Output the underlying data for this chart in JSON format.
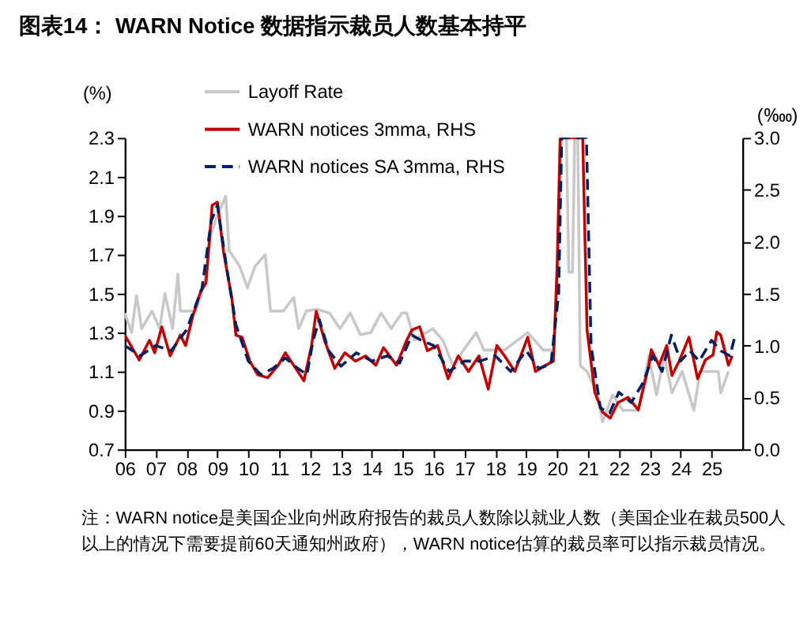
{
  "chart_data": {
    "type": "line",
    "title": "图表14：  WARN Notice 数据指示裁员人数基本持平",
    "ylabel": "(%)",
    "y2label": "(‱)",
    "annotations": [
      "注：WARN notice是美国企业向州政府报告的裁员人数除以就业人数（美国企业在裁员500人以上的情况下需要提前60天通知州政府），WARN notice估算的裁员率可以指示裁员情况。"
    ],
    "xlim": [
      2006,
      2026
    ],
    "xticks": [
      {
        "value": 2006,
        "label": "06"
      },
      {
        "value": 2007,
        "label": "07"
      },
      {
        "value": 2008,
        "label": "08"
      },
      {
        "value": 2009,
        "label": "09"
      },
      {
        "value": 2010,
        "label": "10"
      },
      {
        "value": 2011,
        "label": "11"
      },
      {
        "value": 2012,
        "label": "12"
      },
      {
        "value": 2013,
        "label": "13"
      },
      {
        "value": 2014,
        "label": "14"
      },
      {
        "value": 2015,
        "label": "15"
      },
      {
        "value": 2016,
        "label": "16"
      },
      {
        "value": 2017,
        "label": "17"
      },
      {
        "value": 2018,
        "label": "18"
      },
      {
        "value": 2019,
        "label": "19"
      },
      {
        "value": 2020,
        "label": "20"
      },
      {
        "value": 2021,
        "label": "21"
      },
      {
        "value": 2022,
        "label": "22"
      },
      {
        "value": 2023,
        "label": "23"
      },
      {
        "value": 2024,
        "label": "24"
      },
      {
        "value": 2025,
        "label": "25"
      }
    ],
    "ylim": [
      0.7,
      2.3
    ],
    "yticks": [
      {
        "value": 0.7,
        "label": "0.7"
      },
      {
        "value": 0.9,
        "label": "0.9"
      },
      {
        "value": 1.1,
        "label": "1.1"
      },
      {
        "value": 1.3,
        "label": "1.3"
      },
      {
        "value": 1.5,
        "label": "1.5"
      },
      {
        "value": 1.7,
        "label": "1.7"
      },
      {
        "value": 1.9,
        "label": "1.9"
      },
      {
        "value": 2.1,
        "label": "2.1"
      },
      {
        "value": 2.3,
        "label": "2.3"
      }
    ],
    "y2lim": [
      0,
      3
    ],
    "y2ticks": [
      {
        "value": 0,
        "label": "0.0"
      },
      {
        "value": 0.5,
        "label": "0.5"
      },
      {
        "value": 1,
        "label": "1.0"
      },
      {
        "value": 1.5,
        "label": "1.5"
      },
      {
        "value": 2,
        "label": "2.0"
      },
      {
        "value": 2.5,
        "label": "2.5"
      },
      {
        "value": 3,
        "label": "3.0"
      }
    ],
    "grid": false,
    "legend": "top left",
    "series": [
      {
        "name": "Layoff Rate",
        "color": "#c8c8c8",
        "line_style": "solid",
        "x": [
          2006.0,
          2006.22,
          2006.38,
          2006.55,
          2006.88,
          2007.13,
          2007.3,
          2007.55,
          2007.72,
          2007.8,
          2008.3,
          2008.55,
          2008.8,
          2009.0,
          2009.27,
          2009.38,
          2009.72,
          2009.97,
          2010.22,
          2010.55,
          2010.72,
          2011.13,
          2011.47,
          2011.63,
          2011.88,
          2012.22,
          2012.63,
          2012.97,
          2013.3,
          2013.63,
          2013.97,
          2014.3,
          2014.63,
          2014.97,
          2015.13,
          2015.38,
          2015.97,
          2016.3,
          2016.63,
          2016.97,
          2017.38,
          2017.63,
          2018.3,
          2019.05,
          2019.55,
          2019.88,
          2020.05,
          2020.13,
          2020.3,
          2020.38,
          2020.5,
          2020.57,
          2020.67,
          2020.75,
          2020.97,
          2021.3,
          2021.47,
          2021.8,
          2022.13,
          2022.63,
          2022.97,
          2023.22,
          2023.47,
          2023.72,
          2024.05,
          2024.43,
          2024.63,
          2025.22,
          2025.3,
          2025.55
        ],
        "values": [
          1.4,
          1.3,
          1.49,
          1.32,
          1.41,
          1.32,
          1.5,
          1.32,
          1.6,
          1.41,
          1.41,
          1.53,
          1.81,
          1.9,
          2.0,
          1.72,
          1.64,
          1.53,
          1.64,
          1.7,
          1.41,
          1.41,
          1.48,
          1.32,
          1.41,
          1.42,
          1.4,
          1.32,
          1.4,
          1.29,
          1.3,
          1.4,
          1.32,
          1.4,
          1.4,
          1.26,
          1.32,
          1.26,
          1.13,
          1.21,
          1.3,
          1.21,
          1.21,
          1.3,
          1.21,
          1.21,
          1.64,
          2.3,
          2.3,
          1.61,
          1.61,
          2.3,
          2.3,
          1.13,
          1.1,
          0.99,
          0.84,
          0.98,
          0.9,
          0.9,
          1.18,
          0.98,
          1.18,
          0.99,
          1.1,
          0.9,
          1.1,
          1.1,
          0.99,
          1.1
        ]
      },
      {
        "name": "WARN notices 3mma, RHS",
        "color": "#c00000",
        "line_style": "solid",
        "axis": "y2",
        "x": [
          2006.0,
          2006.47,
          2006.8,
          2006.97,
          2007.2,
          2007.47,
          2007.8,
          2007.97,
          2008.2,
          2008.47,
          2008.63,
          2008.83,
          2009.0,
          2009.2,
          2009.47,
          2009.6,
          2009.8,
          2010.05,
          2010.3,
          2010.63,
          2010.97,
          2011.2,
          2011.47,
          2011.8,
          2012.05,
          2012.2,
          2012.47,
          2012.8,
          2013.13,
          2013.47,
          2013.8,
          2014.13,
          2014.38,
          2014.8,
          2015.13,
          2015.3,
          2015.55,
          2015.8,
          2016.13,
          2016.47,
          2016.8,
          2017.13,
          2017.47,
          2017.77,
          2018.05,
          2018.3,
          2018.63,
          2019.05,
          2019.3,
          2019.63,
          2019.88,
          2020.0,
          2020.1,
          2020.83,
          2020.97,
          2021.22,
          2021.47,
          2021.72,
          2021.97,
          2022.3,
          2022.63,
          2022.97,
          2023.05,
          2023.3,
          2023.55,
          2023.72,
          2023.97,
          2024.27,
          2024.55,
          2024.8,
          2025.05,
          2025.17,
          2025.3,
          2025.55,
          2025.67
        ],
        "values": [
          1.1,
          0.86,
          1.05,
          0.93,
          1.18,
          0.9,
          1.1,
          1.0,
          1.28,
          1.53,
          1.6,
          2.35,
          2.38,
          1.9,
          1.45,
          1.1,
          1.08,
          0.85,
          0.72,
          0.69,
          0.81,
          0.93,
          0.81,
          0.66,
          1.0,
          1.33,
          1.05,
          0.78,
          0.93,
          0.85,
          0.9,
          0.81,
          0.98,
          0.81,
          1.05,
          1.15,
          1.18,
          0.95,
          1.0,
          0.68,
          0.9,
          0.75,
          0.9,
          0.58,
          1.0,
          0.9,
          0.75,
          1.08,
          0.75,
          0.81,
          0.85,
          1.75,
          3.0,
          3.0,
          1.15,
          0.55,
          0.36,
          0.3,
          0.45,
          0.5,
          0.38,
          0.81,
          0.96,
          0.81,
          1.0,
          0.71,
          0.86,
          1.08,
          0.68,
          0.86,
          0.91,
          1.13,
          1.1,
          0.81,
          0.9
        ]
      },
      {
        "name": "WARN notices SA 3mma, RHS",
        "color": "#002060",
        "line_style": "dashed",
        "axis": "y2",
        "x": [
          2006.0,
          2006.5,
          2007.0,
          2007.5,
          2008.0,
          2008.5,
          2008.8,
          2009.0,
          2009.3,
          2009.6,
          2010.0,
          2010.4,
          2010.8,
          2011.2,
          2011.6,
          2011.9,
          2012.1,
          2012.3,
          2012.6,
          2013.0,
          2013.5,
          2014.0,
          2014.5,
          2014.9,
          2015.3,
          2015.6,
          2016.0,
          2016.5,
          2017.0,
          2017.5,
          2018.0,
          2018.5,
          2019.0,
          2019.4,
          2019.8,
          2020.05,
          2020.15,
          2020.95,
          2021.1,
          2021.4,
          2021.7,
          2022.0,
          2022.4,
          2022.8,
          2023.1,
          2023.4,
          2023.7,
          2024.0,
          2024.3,
          2024.6,
          2025.0,
          2025.3,
          2025.6,
          2025.75
        ],
        "values": [
          1.0,
          0.9,
          1.0,
          0.95,
          1.15,
          1.55,
          2.2,
          2.35,
          1.75,
          1.2,
          0.85,
          0.72,
          0.78,
          0.88,
          0.78,
          0.72,
          1.05,
          1.25,
          0.95,
          0.8,
          0.93,
          0.85,
          0.9,
          0.83,
          1.1,
          1.05,
          1.0,
          0.75,
          0.85,
          0.85,
          0.9,
          0.75,
          0.95,
          0.78,
          0.82,
          1.5,
          3.0,
          3.0,
          1.0,
          0.4,
          0.35,
          0.55,
          0.45,
          0.65,
          0.9,
          0.75,
          1.1,
          0.85,
          0.95,
          0.85,
          1.05,
          0.95,
          0.9,
          1.08
        ]
      }
    ]
  }
}
